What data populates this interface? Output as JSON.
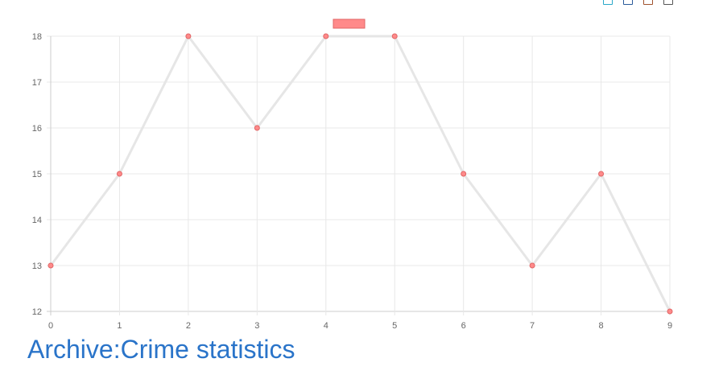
{
  "chart_data": {
    "type": "line",
    "title": "",
    "xlabel": "",
    "ylabel": "",
    "x": [
      0,
      1,
      2,
      3,
      4,
      5,
      6,
      7,
      8,
      9
    ],
    "series": [
      {
        "values": [
          13,
          15,
          18,
          16,
          18,
          18,
          15,
          13,
          15,
          12
        ],
        "line_color": "#e6e6e6",
        "point_color": "#ff8a8a",
        "point_border": "#e06666"
      }
    ],
    "xlim": [
      0,
      9
    ],
    "ylim": [
      12,
      18
    ],
    "y_ticks": [
      12,
      13,
      14,
      15,
      16,
      17,
      18
    ],
    "grid": true,
    "legend": "top-center",
    "legend_swatch_color": "#ff8a8a"
  },
  "page": {
    "archive_link": "Archive:Crime statistics"
  },
  "top_controls": [
    {
      "icon": "square-outline-icon",
      "color": "#2aa8c9"
    },
    {
      "icon": "square-outline-icon",
      "color": "#2a5a9a"
    },
    {
      "icon": "square-outline-icon",
      "color": "#a0522d"
    },
    {
      "icon": "square-outline-icon",
      "color": "#555555"
    }
  ]
}
